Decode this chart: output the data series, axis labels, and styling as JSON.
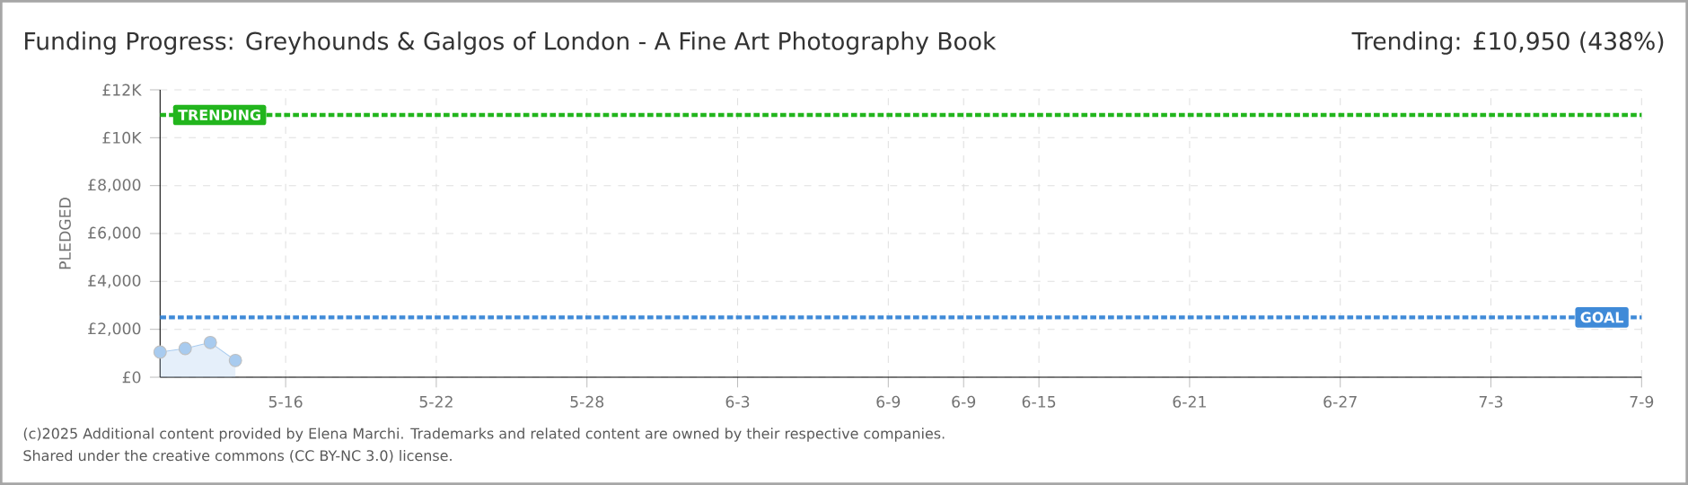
{
  "chart_data": {
    "type": "area",
    "title": "Funding Progress: Greyhounds & Galgos of London - A Fine Art Photography Book",
    "subtitle": "Trending: £10,950 (438%)",
    "ylabel": "PLEDGED",
    "x": [
      "2025-05-11",
      "2025-05-12",
      "2025-05-13",
      "2025-05-14"
    ],
    "series": [
      {
        "color": "#a8cbef",
        "values": [
          1050,
          1200,
          1450,
          700
        ]
      }
    ],
    "marker": "circle",
    "xlim": [
      "2025-05-11",
      "2025-07-09"
    ],
    "xticks": [
      {
        "value": "2025-05-16",
        "label": "5-16"
      },
      {
        "value": "2025-05-22",
        "label": "5-22"
      },
      {
        "value": "2025-05-28",
        "label": "5-28"
      },
      {
        "value": "2025-06-03",
        "label": "6-3"
      },
      {
        "value": "2025-06-09",
        "label": "6-9"
      },
      {
        "value": "2025-06-12",
        "label": "6-9"
      },
      {
        "value": "2025-06-15",
        "label": "6-15"
      },
      {
        "value": "2025-06-21",
        "label": "6-21"
      },
      {
        "value": "2025-06-27",
        "label": "6-27"
      },
      {
        "value": "2025-07-03",
        "label": "7-3"
      },
      {
        "value": "2025-07-09",
        "label": "7-9"
      }
    ],
    "ylim": [
      0,
      12000
    ],
    "yticks": [
      {
        "value": 0,
        "label": "£0"
      },
      {
        "value": 2000,
        "label": "£2,000"
      },
      {
        "value": 4000,
        "label": "£4,000"
      },
      {
        "value": 6000,
        "label": "£6,000"
      },
      {
        "value": 8000,
        "label": "£8,000"
      },
      {
        "value": 10000,
        "label": "£10K"
      },
      {
        "value": 12000,
        "label": "£12K"
      }
    ],
    "grid": true,
    "ref_lines": [
      {
        "axis": "y",
        "value": 10950,
        "label": "TRENDING",
        "color": "#22b51d",
        "line_style": "dashed"
      },
      {
        "axis": "y",
        "value": 2500,
        "label": "GOAL",
        "color": "#3f8ad8",
        "line_style": "dashed"
      }
    ],
    "annotations": [
      "(c)2025 Additional content provided by Elena Marchi. Trademarks and related content are owned by their respective companies.",
      "Shared under the creative commons (CC BY-NC 3.0) license."
    ]
  }
}
